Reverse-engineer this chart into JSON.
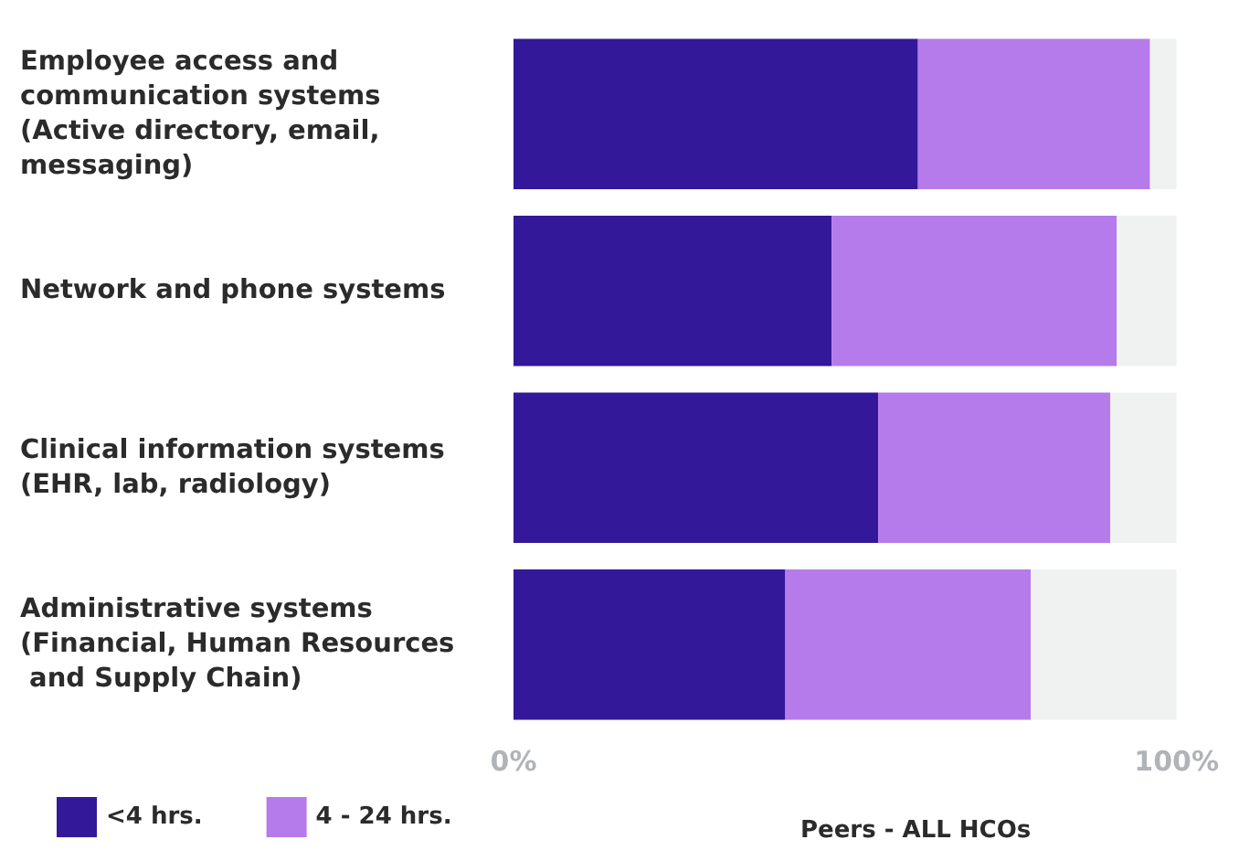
{
  "chart_data": {
    "type": "bar",
    "orientation": "horizontal",
    "stacked": true,
    "categories": [
      "Employee access and communication systems (Active directory, email, messaging)",
      "Network and phone systems",
      "Clinical information systems (EHR, lab, radiology)",
      "Administrative systems (Financial, Human Resources and Supply Chain)"
    ],
    "series": [
      {
        "name": "<4 hrs.",
        "color": "#331899",
        "values": [
          61,
          48,
          55,
          41
        ]
      },
      {
        "name": "4 - 24 hrs.",
        "color": "#b57bea",
        "values": [
          35,
          43,
          35,
          37
        ]
      },
      {
        "color": "#f0f1f1",
        "values": [
          4,
          9,
          10,
          22
        ]
      }
    ],
    "xlim": [
      0,
      100
    ],
    "xticks": [
      {
        "value": 0,
        "label": "0%"
      },
      {
        "value": 100,
        "label": "100%"
      }
    ],
    "legend": "bottom left",
    "grid": false,
    "annotations": [
      "Peers - ALL HCOs"
    ]
  }
}
